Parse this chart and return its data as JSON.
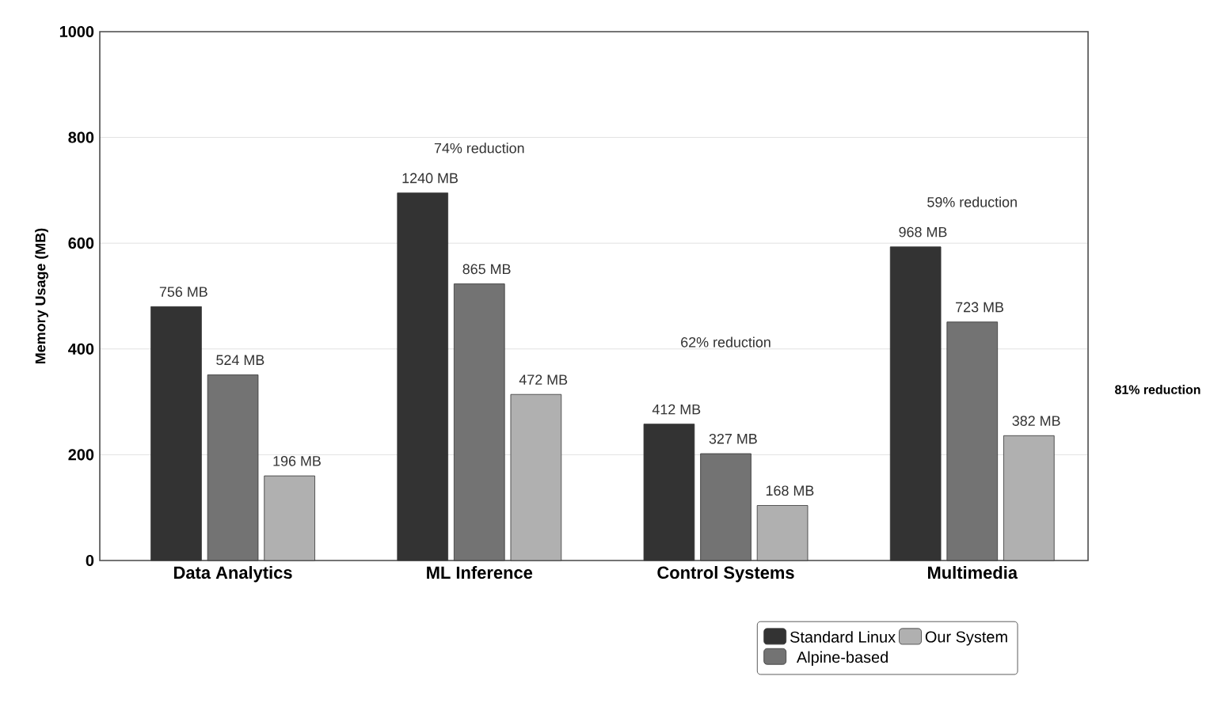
{
  "chart_data": {
    "type": "bar",
    "ylabel": "Memory Usage (MB)",
    "categories": [
      "Data Analytics",
      "ML Inference",
      "Control Systems",
      "Multimedia"
    ],
    "series": [
      {
        "name": "Standard Linux",
        "color": "#333333",
        "values": [
          480,
          695,
          258,
          593
        ]
      },
      {
        "name": "Alpine-based",
        "color": "#737373",
        "values": [
          351,
          523,
          202,
          451
        ]
      },
      {
        "name": "Our System",
        "color": "#b0b0b0",
        "values": [
          160,
          314,
          104,
          236
        ]
      }
    ],
    "annotations": [
      "756 MB",
      "1240 MB",
      "412 MB",
      "968 MB",
      "524 MB",
      "865 MB",
      "327 MB",
      "723 MB",
      "196 MB",
      "472 MB",
      "168 MB",
      "382 MB",
      "74% reduction",
      "62% reduction",
      "59% reduction",
      "81% reduction"
    ],
    "ylim": [
      0,
      1000
    ],
    "yticks": [
      0,
      200,
      400,
      600,
      800,
      1000
    ],
    "grid": "y",
    "legend": "bottom right"
  }
}
